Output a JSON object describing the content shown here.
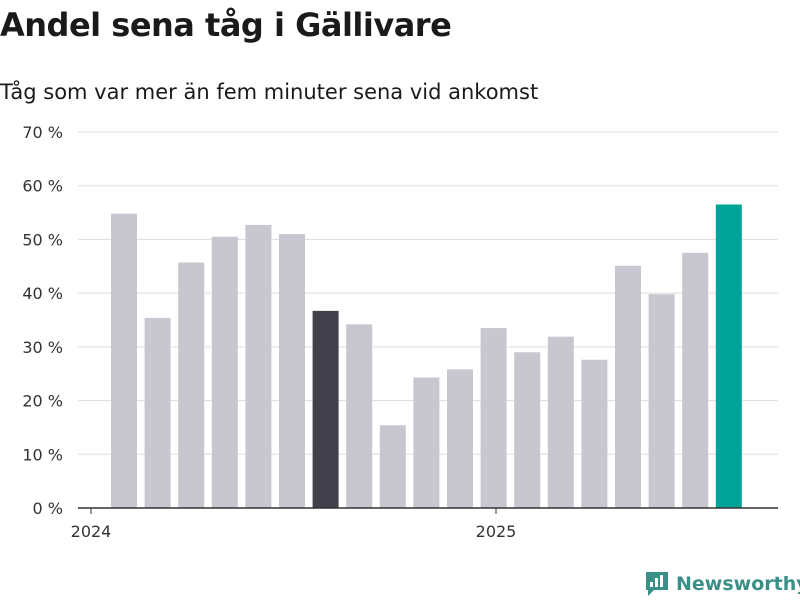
{
  "title": "Andel sena tåg i Gällivare",
  "subtitle": "Tåg som var mer än fem minuter sena vid ankomst",
  "brand": "Newsworthy",
  "colors": {
    "bar": "#c8c7d0",
    "highlight_previous": "#41404b",
    "highlight_latest": "#00a398",
    "grid": "#dddddd",
    "brand": "#3a8f86"
  },
  "chart_data": {
    "type": "bar",
    "ylim": [
      0,
      70
    ],
    "yticks": [
      0,
      10,
      20,
      30,
      40,
      50,
      60,
      70
    ],
    "ytick_labels": [
      "0 %",
      "10 %",
      "20 %",
      "30 %",
      "40 %",
      "50 %",
      "60 %",
      "70 %"
    ],
    "xtick_labels": [
      "2024",
      "2025"
    ],
    "grid": true,
    "bars": [
      {
        "value": 54.8,
        "style": "normal"
      },
      {
        "value": 35.4,
        "style": "normal"
      },
      {
        "value": 45.7,
        "style": "normal"
      },
      {
        "value": 50.5,
        "style": "normal"
      },
      {
        "value": 52.7,
        "style": "normal"
      },
      {
        "value": 51.0,
        "style": "normal"
      },
      {
        "value": 36.7,
        "style": "previous"
      },
      {
        "value": 34.2,
        "style": "normal"
      },
      {
        "value": 15.4,
        "style": "normal"
      },
      {
        "value": 24.3,
        "style": "normal"
      },
      {
        "value": 25.8,
        "style": "normal"
      },
      {
        "value": 33.5,
        "style": "normal"
      },
      {
        "value": 29.0,
        "style": "normal"
      },
      {
        "value": 31.9,
        "style": "normal"
      },
      {
        "value": 27.6,
        "style": "normal"
      },
      {
        "value": 45.1,
        "style": "normal"
      },
      {
        "value": 39.8,
        "style": "normal"
      },
      {
        "value": 47.5,
        "style": "normal"
      },
      {
        "value": 56.5,
        "style": "latest"
      }
    ]
  }
}
